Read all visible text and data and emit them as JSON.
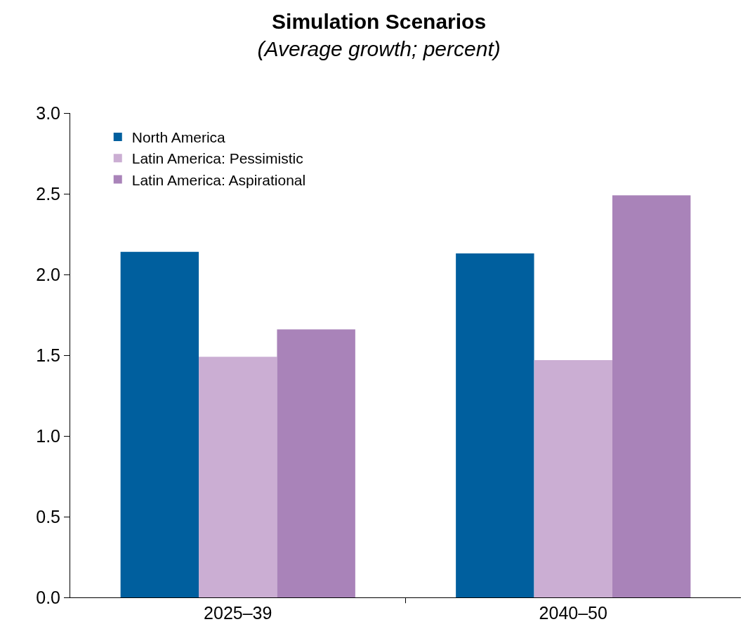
{
  "chart_data": {
    "type": "bar",
    "title": "Simulation Scenarios",
    "subtitle": "(Average growth; percent)",
    "categories": [
      "2025–39",
      "2040–50"
    ],
    "series": [
      {
        "name": "North America",
        "color": "#005f9e",
        "values": [
          2.14,
          2.13
        ]
      },
      {
        "name": "Latin America: Pessimistic",
        "color": "#cbaed3",
        "values": [
          1.49,
          1.47
        ]
      },
      {
        "name": "Latin America: Aspirational",
        "color": "#a983b9",
        "values": [
          1.66,
          2.49
        ]
      }
    ],
    "ylim": [
      0,
      3.0
    ],
    "yticks": [
      {
        "value": 0,
        "label": "0.0"
      },
      {
        "value": 0.5,
        "label": "0.5"
      },
      {
        "value": 1.0,
        "label": "1.0"
      },
      {
        "value": 1.5,
        "label": "1.5"
      },
      {
        "value": 2.0,
        "label": "2.0"
      },
      {
        "value": 2.5,
        "label": "2.5"
      },
      {
        "value": 3.0,
        "label": "3.0"
      }
    ],
    "grid": false,
    "legend": "top left"
  }
}
